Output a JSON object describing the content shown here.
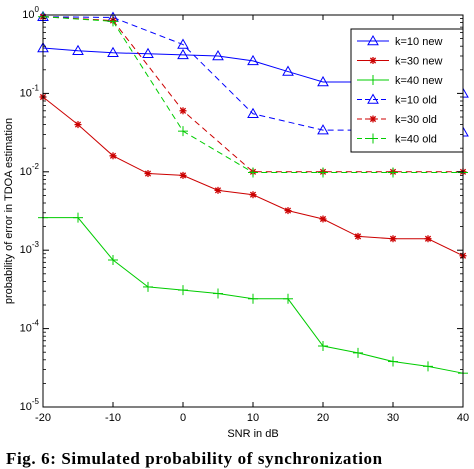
{
  "chart_data": {
    "type": "line",
    "title": "",
    "xlabel": "SNR in dB",
    "ylabel": "probability of error in TDOA estimation",
    "xlim": [
      -20,
      40
    ],
    "ylim": [
      1e-05,
      1
    ],
    "yscale": "log",
    "grid": false,
    "legend_position": "top-right",
    "x_ticks": [
      "-20",
      "-10",
      "0",
      "10",
      "20",
      "30",
      "40"
    ],
    "y_ticks": [
      {
        "base": "10",
        "exp": "0",
        "value": 1
      },
      {
        "base": "10",
        "exp": "-1",
        "value": 0.1
      },
      {
        "base": "10",
        "exp": "-2",
        "value": 0.01
      },
      {
        "base": "10",
        "exp": "-3",
        "value": 0.001
      },
      {
        "base": "10",
        "exp": "-4",
        "value": 0.0001
      },
      {
        "base": "10",
        "exp": "-5",
        "value": 1e-05
      }
    ],
    "series": [
      {
        "name": "k=10 new",
        "color": "#0000ff",
        "dash": "solid",
        "marker": "triangle",
        "x": [
          -20,
          -15,
          -10,
          -5,
          0,
          5,
          10,
          15,
          20,
          25,
          30,
          35,
          40
        ],
        "y": [
          0.38,
          0.35,
          0.33,
          0.32,
          0.31,
          0.3,
          0.26,
          0.19,
          0.14,
          0.14,
          0.14,
          0.12,
          0.1
        ]
      },
      {
        "name": "k=30 new",
        "color": "#cc0000",
        "dash": "solid",
        "marker": "star",
        "x": [
          -20,
          -15,
          -10,
          -5,
          0,
          5,
          10,
          15,
          20,
          25,
          30,
          35,
          40
        ],
        "y": [
          0.09,
          0.04,
          0.016,
          0.0095,
          0.009,
          0.0058,
          0.0051,
          0.0032,
          0.0025,
          0.0015,
          0.0014,
          0.0014,
          0.00085
        ]
      },
      {
        "name": "k=40 new",
        "color": "#00cc00",
        "dash": "solid",
        "marker": "plus",
        "x": [
          -20,
          -15,
          -10,
          -5,
          0,
          5,
          10,
          15,
          20,
          25,
          30,
          35,
          40
        ],
        "y": [
          0.0026,
          0.0026,
          0.00075,
          0.00034,
          0.00031,
          0.00028,
          0.00024,
          0.00024,
          6e-05,
          4.9e-05,
          3.8e-05,
          3.3e-05,
          2.7e-05
        ]
      },
      {
        "name": "k=10 old",
        "color": "#0000ff",
        "dash": "dashed",
        "marker": "triangle",
        "x": [
          -20,
          -10,
          0,
          10,
          20,
          30,
          40
        ],
        "y": [
          0.95,
          0.93,
          0.42,
          0.055,
          0.034,
          0.034,
          0.032
        ]
      },
      {
        "name": "k=30 old",
        "color": "#cc0000",
        "dash": "dashed",
        "marker": "star",
        "x": [
          -20,
          -10,
          0,
          10,
          20,
          30,
          40
        ],
        "y": [
          0.95,
          0.85,
          0.06,
          0.01,
          0.01,
          0.01,
          0.01
        ]
      },
      {
        "name": "k=40 old",
        "color": "#00cc00",
        "dash": "dashed",
        "marker": "plus",
        "x": [
          -20,
          -10,
          0,
          10,
          20,
          30,
          40
        ],
        "y": [
          0.95,
          0.83,
          0.033,
          0.0098,
          0.0098,
          0.0098,
          0.0098
        ]
      }
    ]
  },
  "caption": "Fig. 6: Simulated probability of synchronization"
}
